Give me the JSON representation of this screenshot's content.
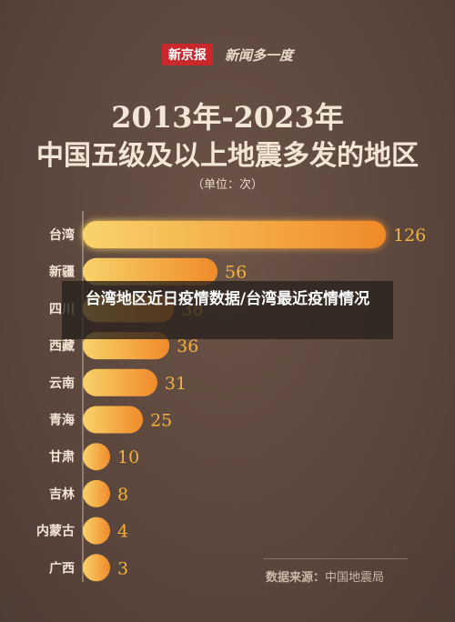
{
  "brand": {
    "name": "新京报",
    "subtitle": "新闻多一度"
  },
  "overlay_text": "台湾地区近日疫情数据/台湾最近疫情情况",
  "source": {
    "label": "数据来源：",
    "value": "中国地震局"
  },
  "colors": {
    "bar_start": "#f6c45a",
    "bar_end": "#f08c2c",
    "text": "#f3e6d6",
    "background": "#5e4a40"
  },
  "chart_data": {
    "type": "bar",
    "orientation": "horizontal",
    "title": "2013年-2023年",
    "subtitle": "中国五级及以上地震多发的地区",
    "unit": "（单位：次）",
    "categories": [
      "台湾",
      "新疆",
      "四川",
      "西藏",
      "云南",
      "青海",
      "甘肃",
      "吉林",
      "内蒙古",
      "广西"
    ],
    "values": [
      126,
      56,
      38,
      36,
      31,
      25,
      10,
      8,
      4,
      3
    ],
    "xlim": [
      0,
      126
    ],
    "grid": false,
    "legend": "none"
  }
}
